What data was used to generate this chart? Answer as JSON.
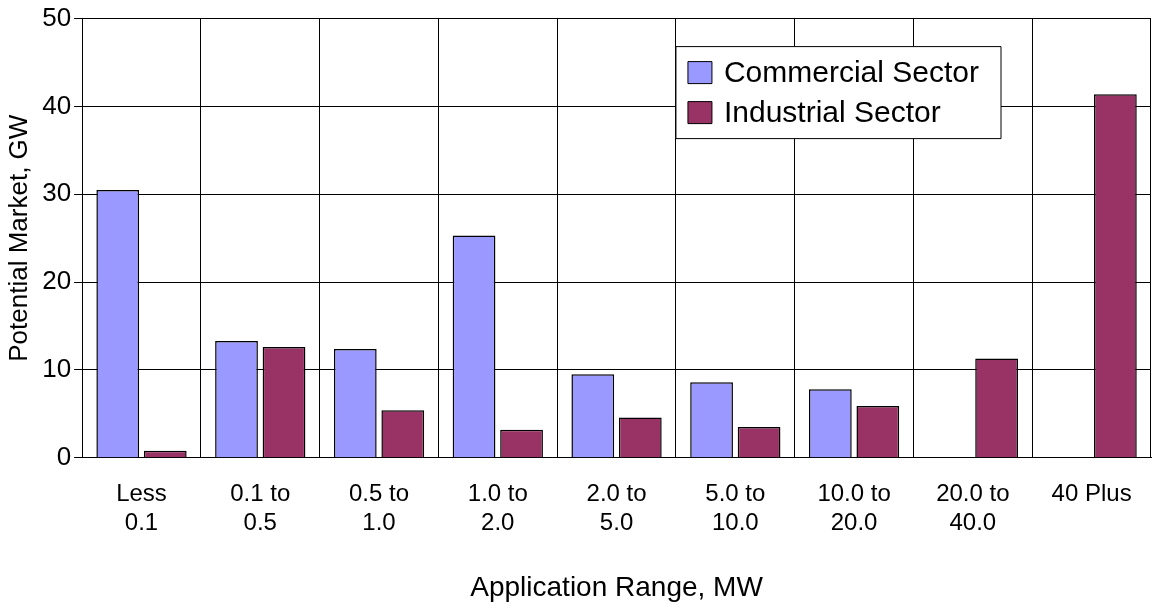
{
  "chart_data": {
    "type": "bar",
    "xlabel": "Application Range, MW",
    "ylabel": "Potential Market, GW",
    "categories": [
      "Less 0.1",
      "0.1 to 0.5",
      "0.5 to 1.0",
      "1.0 to 2.0",
      "2.0 to 5.0",
      "5.0 to 10.0",
      "10.0 to 20.0",
      "20.0 to 40.0",
      "40 Plus"
    ],
    "series": [
      {
        "name": "Commercial Sector",
        "color": "#9999ff",
        "values": [
          30.5,
          13.3,
          12.4,
          25.3,
          9.5,
          8.6,
          7.8,
          null,
          null
        ]
      },
      {
        "name": "Industrial Sector",
        "color": "#993366",
        "values": [
          0.8,
          12.6,
          5.4,
          3.2,
          4.6,
          3.5,
          5.9,
          11.3,
          41.4
        ]
      }
    ],
    "ylim": [
      0,
      50
    ],
    "yticks": [
      0,
      10,
      20,
      30,
      40,
      50
    ],
    "grid": true,
    "legend": "top right"
  }
}
